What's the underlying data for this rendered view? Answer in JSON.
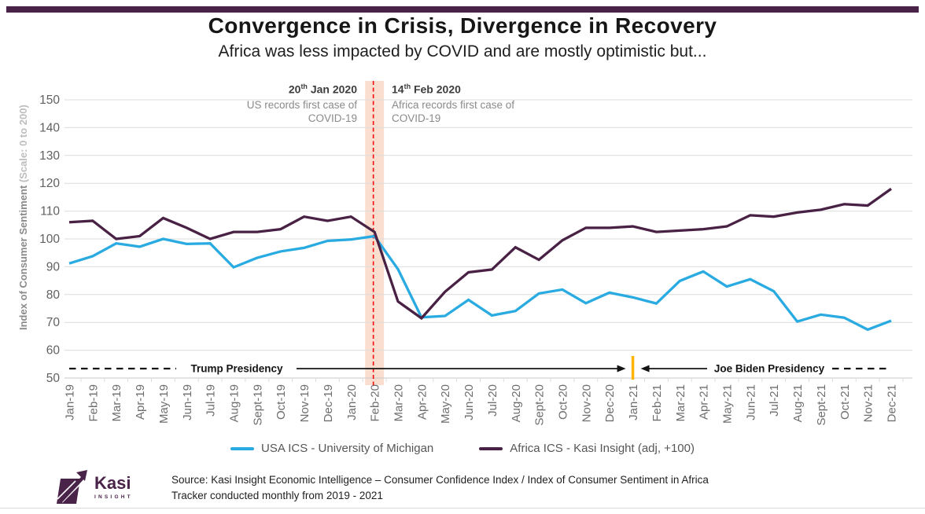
{
  "chart_data": {
    "type": "line",
    "title": "Convergence in Crisis, Divergence in Recovery",
    "subtitle": "Africa was less impacted by COVID and are mostly optimistic but...",
    "ylabel_bold": "Index of Consumer Sentiment",
    "ylabel_light": "(Scale: 0 to 200)",
    "ylim": [
      50,
      150
    ],
    "ytick_step": 10,
    "grid": true,
    "legend_position": "bottom",
    "categories": [
      "Jan-19",
      "Feb-19",
      "Mar-19",
      "Apr-19",
      "May-19",
      "Jun-19",
      "Jul-19",
      "Aug-19",
      "Sept-19",
      "Oct-19",
      "Nov-19",
      "Dec-19",
      "Jan-20",
      "Feb-20",
      "Mar-20",
      "Apr-20",
      "May-20",
      "Jun-20",
      "Jul-20",
      "Aug-20",
      "Sept-20",
      "Oct-20",
      "Nov-20",
      "Dec-20",
      "Jan-21",
      "Feb-21",
      "Mar-21",
      "Apr-21",
      "May-21",
      "Jun-21",
      "Jul-21",
      "Aug-21",
      "Sept-21",
      "Oct-21",
      "Nov-21",
      "Dec-21"
    ],
    "series": [
      {
        "name": "USA ICS - University of Michigan",
        "color": "#29ABE2",
        "values": [
          91.2,
          93.8,
          98.4,
          97.2,
          100.0,
          98.2,
          98.4,
          89.8,
          93.2,
          95.5,
          96.8,
          99.3,
          99.8,
          101.0,
          89.1,
          71.8,
          72.3,
          78.1,
          72.5,
          74.1,
          80.4,
          81.8,
          76.9,
          80.7,
          79.0,
          76.8,
          84.9,
          88.3,
          82.9,
          85.5,
          81.2,
          70.3,
          72.8,
          71.7,
          67.4,
          70.6
        ]
      },
      {
        "name": "Africa ICS - Kasi Insight (adj, +100)",
        "color": "#482144",
        "values": [
          106,
          106.5,
          100,
          101,
          107.5,
          104,
          100,
          102.5,
          102.5,
          103.5,
          108,
          106.5,
          108,
          102.5,
          77.5,
          71.5,
          81,
          88,
          89,
          97,
          92.5,
          99.5,
          104,
          104,
          104.5,
          102.5,
          103,
          103.5,
          104.5,
          108.5,
          108,
          109.5,
          110.5,
          112.5,
          112,
          118
        ]
      }
    ],
    "annotations": {
      "us_case": {
        "date_num": "20",
        "date_sup": "th",
        "date_rest": " Jan 2020",
        "line1": "US records first case of",
        "line2": "COVID-19"
      },
      "africa_case": {
        "date_num": "14",
        "date_sup": "th",
        "date_rest": " Feb 2020",
        "line1": "Africa records first case of",
        "line2": "COVID-19"
      },
      "trump_label": "Trump Presidency",
      "biden_label": "Joe Biden Presidency",
      "biden_marker_month": "Jan-21",
      "event_band_months": [
        "Feb-20",
        "Mar-20"
      ]
    },
    "colors": {
      "event_line": "#F40B0B",
      "event_band": "#FADFD0",
      "biden_marker": "#FFB400",
      "grid": "#DCDCDC",
      "axis_text": "#6E6E6E"
    }
  },
  "page": {
    "accent_bar_color": "#4A2349"
  },
  "footer": {
    "logo_text": "Kasi",
    "logo_subtext": "INSIGHT",
    "logo_color": "#4A2349",
    "source_line1": "Source: Kasi Insight Economic Intelligence – Consumer Confidence Index / Index of Consumer Sentiment in Africa",
    "source_line2": "Tracker conducted monthly from 2019 - 2021"
  }
}
